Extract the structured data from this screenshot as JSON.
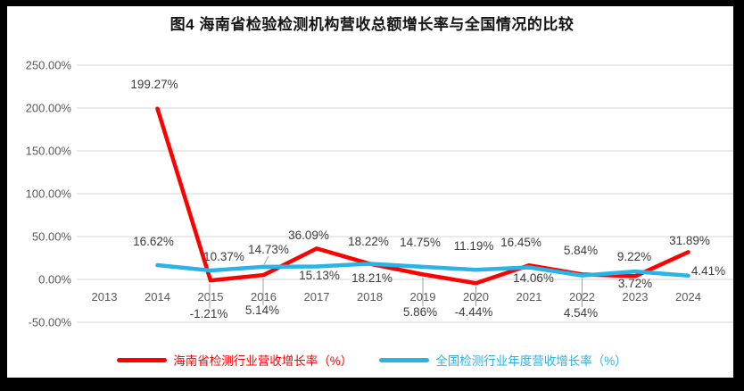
{
  "title": "图4 海南省检验检测机构营收总额增长率与全国情况的比较",
  "chart_data": {
    "type": "line",
    "title": "图4 海南省检验检测机构营收总额增长率与全国情况的比较",
    "categories": [
      "2013",
      "2014",
      "2015",
      "2016",
      "2017",
      "2018",
      "2019",
      "2020",
      "2021",
      "2022",
      "2023",
      "2024"
    ],
    "series": [
      {
        "name": "海南省检测行业营收增长率（%）",
        "color": "#ff0000",
        "values": [
          null,
          199.27,
          -1.21,
          5.14,
          36.09,
          18.22,
          5.86,
          -4.44,
          16.45,
          5.84,
          3.72,
          31.89
        ]
      },
      {
        "name": "全国检测行业年度营收增长率（%）",
        "color": "#29b3e6",
        "values": [
          null,
          16.62,
          10.37,
          14.73,
          15.13,
          18.21,
          14.75,
          11.19,
          14.06,
          4.54,
          9.22,
          4.41
        ]
      }
    ],
    "xlabel": "",
    "ylabel": "",
    "ylim": [
      -50,
      250
    ],
    "ytick_step": 50,
    "ytick_labels": [
      "250.00%",
      "200.00%",
      "150.00%",
      "100.00%",
      "50.00%",
      "0.00%",
      "-50.00%"
    ],
    "grid": true,
    "data_labels": true,
    "label_suffix": "%",
    "legend_position": "bottom"
  },
  "colors": {
    "frame": "#000000",
    "background": "#ffffff",
    "gridline": "#d6d6d6",
    "leader": "#9e9e9e",
    "axis_text": "#595959",
    "data_label": "#3b3b3b",
    "title_text": "#141414"
  }
}
